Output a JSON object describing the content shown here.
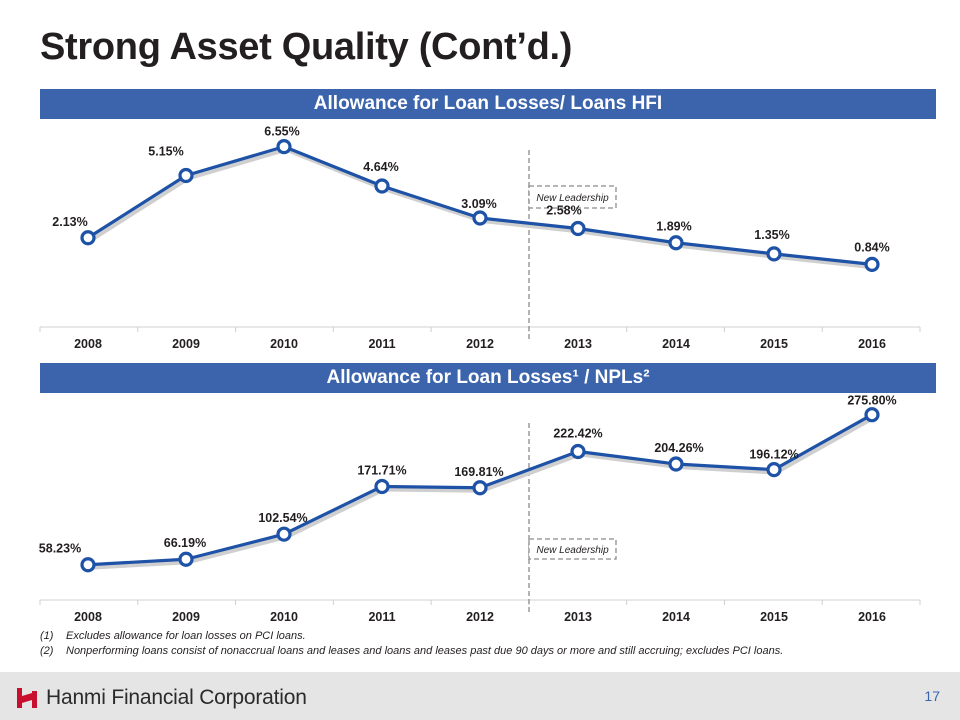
{
  "title": "Strong Asset Quality (Cont’d.)",
  "sections": [
    {
      "heading": "Allowance for Loan Losses/ Loans HFI"
    },
    {
      "heading": "Allowance for Loan Losses¹ / NPLs²"
    }
  ],
  "chart_data": [
    {
      "type": "line",
      "title": "Allowance for Loan Losses/ Loans HFI",
      "categories": [
        "2008",
        "2009",
        "2010",
        "2011",
        "2012",
        "2013",
        "2014",
        "2015",
        "2016"
      ],
      "values": [
        2.13,
        5.15,
        6.55,
        4.64,
        3.09,
        2.58,
        1.89,
        1.35,
        0.84
      ],
      "labels": [
        "2.13%",
        "5.15%",
        "6.55%",
        "4.64%",
        "3.09%",
        "2.58%",
        "1.89%",
        "1.35%",
        "0.84%"
      ],
      "ylim": [
        -2.1,
        7.6
      ],
      "annotation": "New Leadership",
      "color": "#1e52a6"
    },
    {
      "type": "line",
      "title": "Allowance for Loan Losses¹ / NPLs²",
      "categories": [
        "2008",
        "2009",
        "2010",
        "2011",
        "2012",
        "2013",
        "2014",
        "2015",
        "2016"
      ],
      "values": [
        58.23,
        66.19,
        102.54,
        171.71,
        169.81,
        222.42,
        204.26,
        196.12,
        275.8
      ],
      "labels": [
        "58.23%",
        "66.19%",
        "102.54%",
        "171.71%",
        "169.81%",
        "222.42%",
        "204.26%",
        "196.12%",
        "275.80%"
      ],
      "ylim": [
        10,
        300
      ],
      "annotation": "New Leadership",
      "color": "#1e52a6"
    }
  ],
  "footnotes": [
    {
      "num": "(1)",
      "text": "Excludes allowance for loan losses on PCI loans."
    },
    {
      "num": "(2)",
      "text": "Nonperforming loans consist of nonaccrual loans and leases and loans and leases past due 90 days or more and still accruing; excludes PCI loans."
    }
  ],
  "footer": {
    "company": "Hanmi Financial Corporation",
    "page": "17",
    "logo_color": "#c8102e"
  }
}
